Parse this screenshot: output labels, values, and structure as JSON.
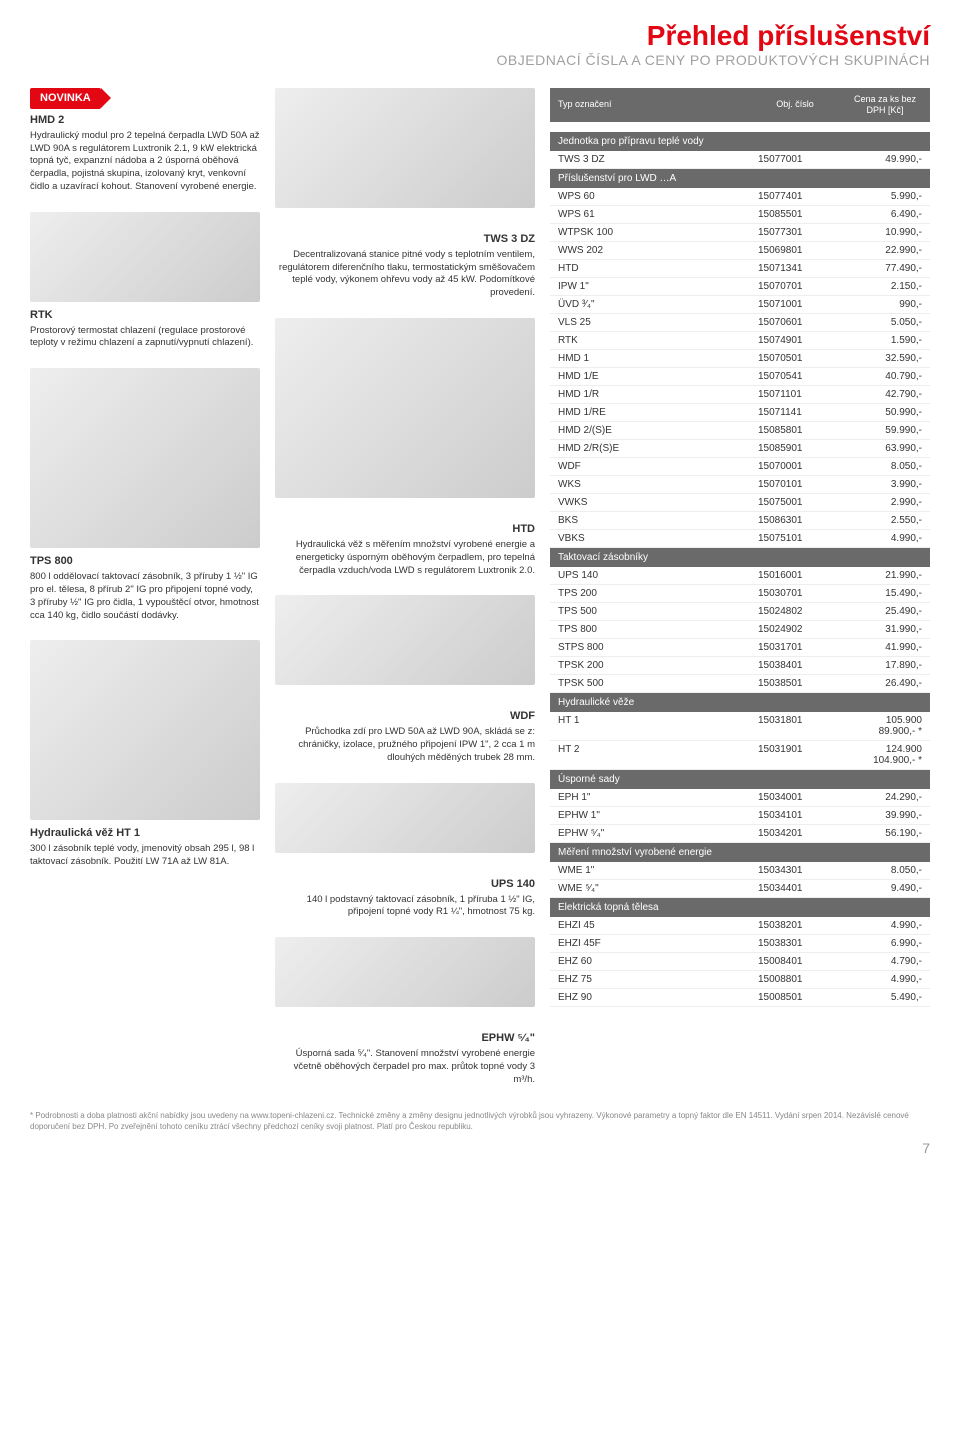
{
  "header": {
    "title": "Přehled příslušenství",
    "subtitle": "OBJEDNACÍ ČÍSLA A CENY PO PRODUKTOVÝCH SKUPINÁCH"
  },
  "table_header": {
    "col1": "Typ\noznačení",
    "col2": "Obj. číslo",
    "col3": "Cena za ks\nbez DPH\n[Kč]"
  },
  "novinka_label": "NOVINKA",
  "left": {
    "hmd2": {
      "title": "HMD 2",
      "text": "Hydraulický modul pro 2 tepelná čerpadla LWD 50A až LWD 90A s regulátorem Luxtronik 2.1, 9 kW elektrická topná tyč, expanzní nádoba a 2 úsporná oběhová čerpadla, pojistná skupina, izolovaný kryt, venkovní čidlo a uzavírací kohout. Stanovení vyrobené energie."
    },
    "rtk": {
      "title": "RTK",
      "text": "Prostorový termostat chlazení (regulace prostorové teploty v režimu chlazení a zapnutí/vypnutí chlazení)."
    },
    "tps800": {
      "title": "TPS 800",
      "text": "800 l oddělovací taktovací zásobník, 3 příruby 1 ½\" IG pro el. tělesa, 8 přírub 2\" IG pro připojení topné vody, 3 příruby ½\" IG pro čidla, 1 vypouštěcí otvor, hmotnost cca 140 kg, čidlo součástí dodávky."
    },
    "ht1": {
      "title": "Hydraulická věž HT 1",
      "text": "300 l zásobník teplé vody, jmenovitý obsah 295 l, 98 l taktovací zásobník. Použití LW 71A až LW 81A."
    }
  },
  "mid": {
    "tws3dz": {
      "title": "TWS 3 DZ",
      "text": "Decentralizovaná stanice pitné vody s teplotním ventilem, regulátorem diferenčního tlaku, termostatickým směšovačem teplé vody, výkonem ohřevu vody až 45 kW. Podomítkové provedení."
    },
    "htd": {
      "title": "HTD",
      "text": "Hydraulická věž s měřením množství vyrobené energie a energeticky úsporným oběhovým čerpadlem, pro tepelná čerpadla vzduch/voda LWD s regulátorem Luxtronik 2.0."
    },
    "wdf": {
      "title": "WDF",
      "text": "Průchodka zdí pro LWD 50A až LWD 90A, skládá se z: chráničky, izolace, pružného připojení IPW 1\", 2 cca 1 m dlouhých měděných trubek 28 mm."
    },
    "ups140": {
      "title": "UPS 140",
      "text": "140 l podstavný taktovací zásobník, 1 příruba 1 ½\" IG, připojení topné vody R1 ¼\", hmotnost 75 kg."
    },
    "ephw": {
      "title": "EPHW ⁵⁄₄\"",
      "text": "Úsporná sada ⁵⁄₄\". Stanovení množství vyrobené energie včetně oběhových čerpadel pro max. průtok topné vody 3 m³/h."
    }
  },
  "sections": [
    {
      "title": "Jednotka pro přípravu teplé vody",
      "rows": [
        [
          "TWS 3 DZ",
          "15077001",
          "49.990,-"
        ]
      ]
    },
    {
      "title": "Příslušenství pro LWD …A",
      "rows": [
        [
          "WPS 60",
          "15077401",
          "5.990,-"
        ],
        [
          "WPS 61",
          "15085501",
          "6.490,-"
        ],
        [
          "WTPSK 100",
          "15077301",
          "10.990,-"
        ],
        [
          "WWS 202",
          "15069801",
          "22.990,-"
        ],
        [
          "HTD",
          "15071341",
          "77.490,-"
        ],
        [
          "IPW 1\"",
          "15070701",
          "2.150,-"
        ],
        [
          "ÜVD ³⁄₄\"",
          "15071001",
          "990,-"
        ],
        [
          "VLS 25",
          "15070601",
          "5.050,-"
        ],
        [
          "RTK",
          "15074901",
          "1.590,-"
        ],
        [
          "HMD 1",
          "15070501",
          "32.590,-"
        ],
        [
          "HMD 1/E",
          "15070541",
          "40.790,-"
        ],
        [
          "HMD 1/R",
          "15071101",
          "42.790,-"
        ],
        [
          "HMD 1/RE",
          "15071141",
          "50.990,-"
        ],
        [
          "HMD 2/(S)E",
          "15085801",
          "59.990,-"
        ],
        [
          "HMD 2/R(S)E",
          "15085901",
          "63.990,-"
        ],
        [
          "WDF",
          "15070001",
          "8.050,-"
        ],
        [
          "WKS",
          "15070101",
          "3.990,-"
        ],
        [
          "VWKS",
          "15075001",
          "2.990,-"
        ],
        [
          "BKS",
          "15086301",
          "2.550,-"
        ],
        [
          "VBKS",
          "15075101",
          "4.990,-"
        ]
      ]
    },
    {
      "title": "Taktovací zásobníky",
      "rows": [
        [
          "UPS 140",
          "15016001",
          "21.990,-"
        ],
        [
          "TPS 200",
          "15030701",
          "15.490,-"
        ],
        [
          "TPS 500",
          "15024802",
          "25.490,-"
        ],
        [
          "TPS 800",
          "15024902",
          "31.990,-"
        ],
        [
          "STPS 800",
          "15031701",
          "41.990,-"
        ],
        [
          "TPSK 200",
          "15038401",
          "17.890,-"
        ],
        [
          "TPSK 500",
          "15038501",
          "26.490,-"
        ]
      ]
    },
    {
      "title": "Hydraulické věže",
      "rows": [
        [
          "HT 1",
          "15031801",
          "105.900  89.900,- *"
        ],
        [
          "HT 2",
          "15031901",
          "124.900  104.900,- *"
        ]
      ]
    },
    {
      "title": "Úsporné sady",
      "rows": [
        [
          "EPH 1\"",
          "15034001",
          "24.290,-"
        ],
        [
          "EPHW 1\"",
          "15034101",
          "39.990,-"
        ],
        [
          "EPHW ⁵⁄₄\"",
          "15034201",
          "56.190,-"
        ]
      ]
    },
    {
      "title": "Měření množství vyrobené energie",
      "rows": [
        [
          "WME 1\"",
          "15034301",
          "8.050,-"
        ],
        [
          "WME ⁵⁄₄\"",
          "15034401",
          "9.490,-"
        ]
      ]
    },
    {
      "title": "Elektrická topná tělesa",
      "rows": [
        [
          "EHZI 45",
          "15038201",
          "4.990,-"
        ],
        [
          "EHZI 45F",
          "15038301",
          "6.990,-"
        ],
        [
          "EHZ 60",
          "15008401",
          "4.790,-"
        ],
        [
          "EHZ 75",
          "15008801",
          "4.990,-"
        ],
        [
          "EHZ 90",
          "15008501",
          "5.490,-"
        ]
      ]
    }
  ],
  "footnote": "* Podrobnosti a doba platnosti akční nabídky jsou uvedeny na www.topeni-chlazeni.cz.\nTechnické změny a změny designu jednotlivých výrobků jsou vyhrazeny. Výkonové parametry a topný faktor dle EN 14511. Vydání srpen 2014. Nezávislé cenové doporučení bez DPH.\nPo zveřejnění tohoto ceníku ztrácí všechny předchozí ceníky svoji platnost. Platí pro Českou republiku.",
  "page_number": "7"
}
